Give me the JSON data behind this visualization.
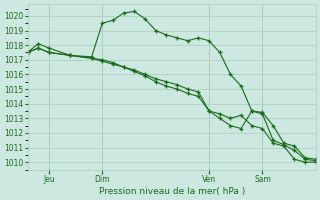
{
  "background_color": "#cce8e0",
  "grid_color": "#aaccbb",
  "line_color": "#1a6b1a",
  "marker_color": "#1a6b1a",
  "xlabel_text": "Pression niveau de la mer( hPa )",
  "ylim": [
    1009.5,
    1020.8
  ],
  "yticks": [
    1010,
    1011,
    1012,
    1013,
    1014,
    1015,
    1016,
    1017,
    1018,
    1019,
    1020
  ],
  "xtick_labels": [
    "Jeu",
    "Dim",
    "Ven",
    "Sam"
  ],
  "xtick_positions": [
    8,
    28,
    68,
    88
  ],
  "xlim": [
    0,
    108
  ],
  "series": [
    {
      "x": [
        0,
        4,
        8,
        16,
        24,
        28,
        32,
        36,
        40,
        44,
        48,
        52,
        56,
        60,
        64,
        68,
        72,
        76,
        80,
        84,
        88,
        92,
        96,
        100,
        104,
        108
      ],
      "y": [
        1017.5,
        1018.1,
        1017.8,
        1017.3,
        1017.2,
        1019.5,
        1019.7,
        1020.2,
        1020.3,
        1019.8,
        1019.0,
        1018.7,
        1018.5,
        1018.3,
        1018.5,
        1018.3,
        1017.5,
        1016.0,
        1015.2,
        1013.5,
        1013.4,
        1012.5,
        1011.3,
        1011.1,
        1010.3,
        1010.2
      ]
    },
    {
      "x": [
        0,
        4,
        8,
        16,
        24,
        28,
        32,
        36,
        40,
        44,
        48,
        52,
        56,
        60,
        64,
        68,
        72,
        76,
        80,
        84,
        88,
        92,
        96,
        100,
        104,
        108
      ],
      "y": [
        1017.5,
        1017.8,
        1017.5,
        1017.3,
        1017.1,
        1017.0,
        1016.8,
        1016.5,
        1016.3,
        1016.0,
        1015.7,
        1015.5,
        1015.3,
        1015.0,
        1014.8,
        1013.5,
        1013.3,
        1013.0,
        1013.2,
        1012.5,
        1012.3,
        1011.3,
        1011.1,
        1010.2,
        1010.0,
        1010.0
      ]
    },
    {
      "x": [
        0,
        4,
        8,
        16,
        24,
        28,
        32,
        36,
        40,
        44,
        48,
        52,
        56,
        60,
        64,
        68,
        72,
        76,
        80,
        84,
        88,
        92,
        96,
        100,
        104,
        108
      ],
      "y": [
        1017.5,
        1017.8,
        1017.5,
        1017.3,
        1017.1,
        1016.9,
        1016.7,
        1016.5,
        1016.2,
        1015.9,
        1015.5,
        1015.2,
        1015.0,
        1014.7,
        1014.5,
        1013.5,
        1013.0,
        1012.5,
        1012.3,
        1013.5,
        1013.3,
        1011.5,
        1011.2,
        1010.8,
        1010.2,
        1010.1
      ]
    }
  ]
}
